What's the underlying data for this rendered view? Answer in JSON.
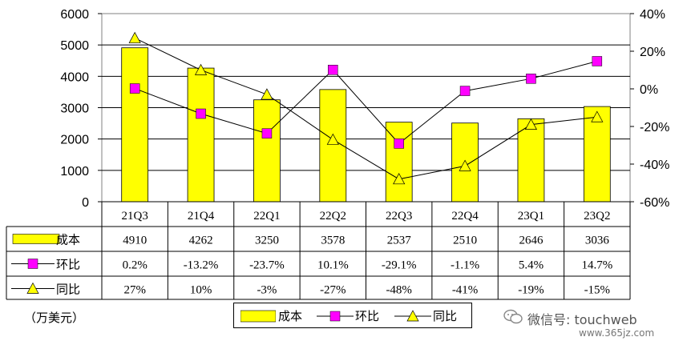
{
  "chart_data": {
    "type": "bar",
    "categories": [
      "21Q3",
      "21Q4",
      "22Q1",
      "22Q2",
      "22Q3",
      "22Q4",
      "23Q1",
      "23Q2"
    ],
    "series": [
      {
        "name": "成本",
        "type": "bar",
        "axis": "left",
        "color": "#ffff00",
        "values": [
          4910,
          4262,
          3250,
          3578,
          2537,
          2510,
          2646,
          3036
        ],
        "labels": [
          "4910",
          "4262",
          "3250",
          "3578",
          "2537",
          "2510",
          "2646",
          "3036"
        ]
      },
      {
        "name": "环比",
        "type": "line",
        "axis": "right",
        "color": "#ff00ff",
        "marker": "square",
        "values": [
          0.2,
          -13.2,
          -23.7,
          10.1,
          -29.1,
          -1.1,
          5.4,
          14.7
        ],
        "labels": [
          "0.2%",
          "-13.2%",
          "-23.7%",
          "10.1%",
          "-29.1%",
          "-1.1%",
          "5.4%",
          "14.7%"
        ]
      },
      {
        "name": "同比",
        "type": "line",
        "axis": "right",
        "color": "#ffff00",
        "marker": "triangle",
        "values": [
          27,
          10,
          -3,
          -27,
          -48,
          -41,
          -19,
          -15
        ],
        "labels": [
          "27%",
          "10%",
          "-3%",
          "-27%",
          "-48%",
          "-41%",
          "-19%",
          "-15%"
        ]
      }
    ],
    "y_left": {
      "range": [
        0,
        6000
      ],
      "ticks": [
        "0",
        "1000",
        "2000",
        "3000",
        "4000",
        "5000",
        "6000"
      ]
    },
    "y_right": {
      "range": [
        -60,
        40
      ],
      "ticks": [
        "-60%",
        "-40%",
        "-20%",
        "0%",
        "20%",
        "40%"
      ]
    },
    "grid": true,
    "legend_position": "bottom",
    "unit_label": "（万美元）",
    "table": true
  },
  "watermark": {
    "line1": "微信号: touchweb",
    "line2": "www.365jz.com"
  }
}
